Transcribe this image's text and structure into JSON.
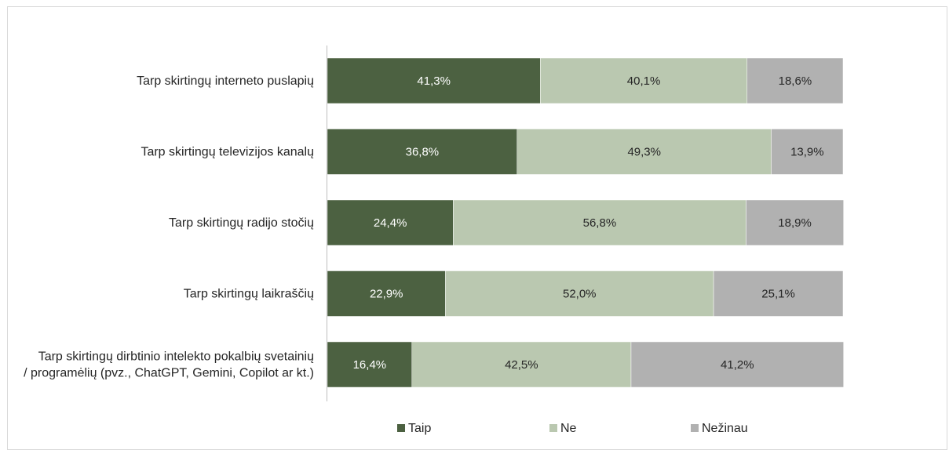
{
  "chart_data": {
    "type": "bar",
    "orientation": "horizontal",
    "stacked": "100%",
    "title": "",
    "xlabel": "",
    "ylabel": "",
    "categories": [
      [
        "Tarp skirtingų interneto puslapių"
      ],
      [
        "Tarp skirtingų televizijos kanalų"
      ],
      [
        "Tarp skirtingų radijo stočių"
      ],
      [
        "Tarp skirtingų laikraščių"
      ],
      [
        "Tarp skirtingų dirbtinio intelekto pokalbių svetainių",
        "/ programėlių (pvz., ChatGPT, Gemini, Copilot ar kt.)"
      ]
    ],
    "series": [
      {
        "name": "Taip",
        "color": "#4c6141",
        "label_color": "#ffffff",
        "values": [
          41.3,
          36.8,
          24.4,
          22.9,
          16.4
        ],
        "labels": [
          "41,3%",
          "36,8%",
          "24,4%",
          "22,9%",
          "16,4%"
        ]
      },
      {
        "name": "Ne",
        "color": "#bac8b0",
        "label_color": "#262626",
        "values": [
          40.1,
          49.3,
          56.8,
          52.0,
          42.5
        ],
        "labels": [
          "40,1%",
          "49,3%",
          "56,8%",
          "52,0%",
          "42,5%"
        ]
      },
      {
        "name": "Nežinau",
        "color": "#b1b1b1",
        "label_color": "#262626",
        "values": [
          18.6,
          13.9,
          18.9,
          25.1,
          41.2
        ],
        "labels": [
          "18,6%",
          "13,9%",
          "18,9%",
          "25,1%",
          "41,2%"
        ]
      }
    ],
    "xlim": [
      0,
      100
    ],
    "grid": false,
    "legend_position": "bottom"
  }
}
